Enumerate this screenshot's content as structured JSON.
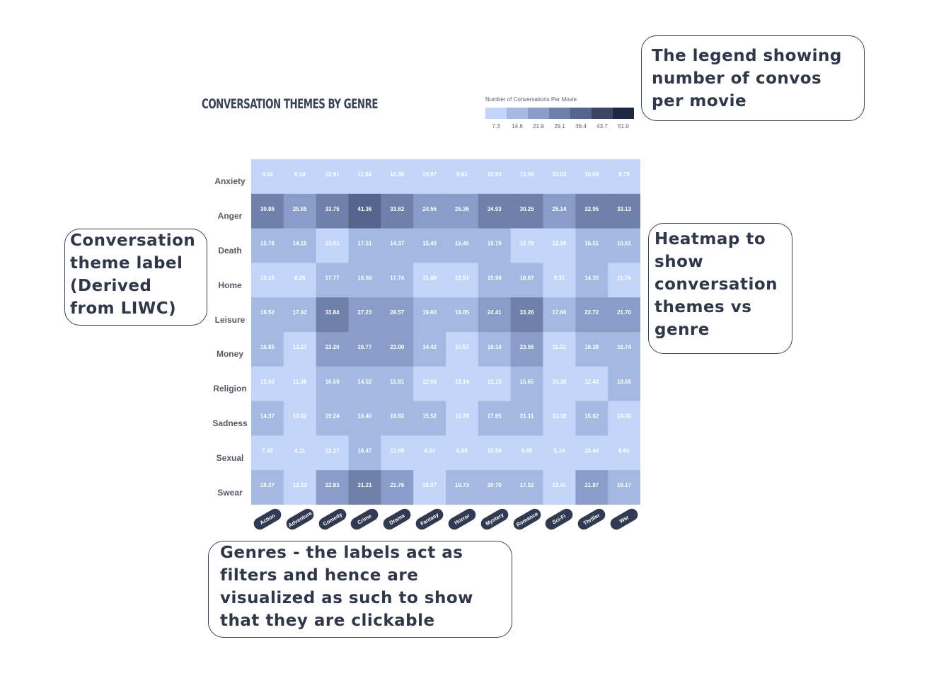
{
  "chart_data": {
    "type": "heatmap",
    "title": "CONVERSATION THEMES BY GENRE",
    "legend": {
      "title": "Number of Conversations Per Movie",
      "ticks": [
        "7.3",
        "14.6",
        "21.9",
        "29.1",
        "36.4",
        "43.7",
        "51.0"
      ],
      "colors": [
        "#c3d6fa",
        "#a3b9e2",
        "#8a9dc8",
        "#6f80aa",
        "#56658c",
        "#3a4563",
        "#1e2640"
      ]
    },
    "rows": [
      "Anxiety",
      "Anger",
      "Death",
      "Home",
      "Leisure",
      "Money",
      "Religion",
      "Sadness",
      "Sexual",
      "Swear"
    ],
    "columns": [
      "Action",
      "Adventure",
      "Comedy",
      "Crime",
      "Drama",
      "Fantasy",
      "Horror",
      "Mystery",
      "Romance",
      "Sci-Fi",
      "Thriller",
      "War"
    ],
    "values": [
      [
        9.34,
        9.14,
        12.91,
        11.64,
        12.35,
        10.97,
        9.62,
        12.53,
        13.39,
        10.03,
        10.69,
        9.7
      ],
      [
        30.85,
        25.65,
        33.75,
        41.36,
        33.62,
        24.56,
        26.36,
        34.93,
        30.25,
        25.14,
        32.95,
        33.13
      ],
      [
        15.78,
        14.15,
        13.01,
        17.51,
        14.37,
        15.4,
        15.46,
        19.79,
        12.79,
        12.99,
        16.51,
        19.61
      ],
      [
        10.15,
        8.2,
        17.77,
        16.58,
        17.74,
        11.48,
        12.91,
        15.98,
        18.87,
        9.31,
        14.35,
        11.74
      ],
      [
        19.52,
        17.62,
        33.84,
        27.23,
        28.57,
        19.6,
        18.65,
        24.41,
        33.26,
        17.6,
        22.72,
        21.7
      ],
      [
        15.85,
        13.27,
        23.2,
        26.77,
        23.0,
        14.42,
        10.57,
        19.14,
        23.55,
        11.01,
        18.38,
        16.74
      ],
      [
        12.43,
        11.38,
        16.59,
        14.52,
        15.81,
        12.66,
        12.14,
        13.13,
        15.65,
        10.3,
        12.43,
        18.65
      ],
      [
        14.37,
        13.62,
        19.24,
        16.4,
        18.82,
        15.52,
        13.78,
        17.65,
        21.11,
        13.38,
        15.62,
        14.0
      ],
      [
        7.32,
        4.11,
        12.17,
        16.47,
        11.59,
        4.04,
        6.88,
        10.59,
        9.65,
        5.14,
        10.44,
        6.61
      ],
      [
        18.37,
        12.13,
        22.83,
        31.21,
        21.76,
        10.07,
        16.73,
        20.7,
        17.02,
        13.41,
        21.87,
        15.17
      ]
    ]
  },
  "callouts": {
    "legend": "The legend showing number of convos per movie",
    "theme": "Conversation theme label (Derived from LIWC)",
    "heatmap": "Heatmap to show conversation themes vs genre",
    "genres": "Genres - the labels act as filters and hence are visualized as such to show that they are clickable"
  }
}
